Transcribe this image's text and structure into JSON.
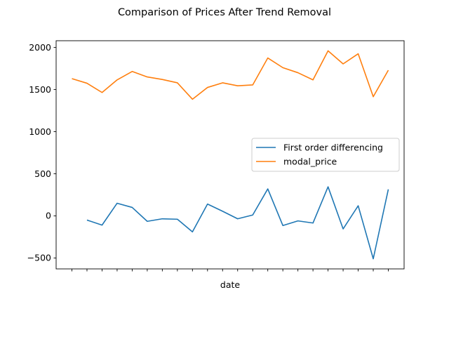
{
  "chart_data": {
    "type": "line",
    "title": "Comparison of Prices After Trend Removal",
    "xlabel": "date",
    "ylabel": "",
    "ylim": [
      -630,
      2080
    ],
    "yticks": [
      -500,
      0,
      500,
      1000,
      1500,
      2000
    ],
    "ytick_labels": [
      "−500",
      "0",
      "500",
      "1000",
      "1500",
      "2000"
    ],
    "x_count": 22,
    "grid": false,
    "legend_position": "center-right",
    "series": [
      {
        "name": "First order differencing",
        "color": "#1f77b4",
        "values": [
          null,
          -50,
          -110,
          150,
          100,
          -65,
          -35,
          -40,
          -190,
          140,
          55,
          -35,
          10,
          320,
          -115,
          -60,
          -85,
          345,
          -155,
          120,
          -510,
          315
        ]
      },
      {
        "name": "modal_price",
        "color": "#ff7f0e",
        "values": [
          1630,
          1575,
          1465,
          1615,
          1715,
          1650,
          1620,
          1580,
          1385,
          1525,
          1580,
          1545,
          1555,
          1875,
          1760,
          1700,
          1615,
          1960,
          1805,
          1925,
          1415,
          1730
        ]
      }
    ]
  }
}
